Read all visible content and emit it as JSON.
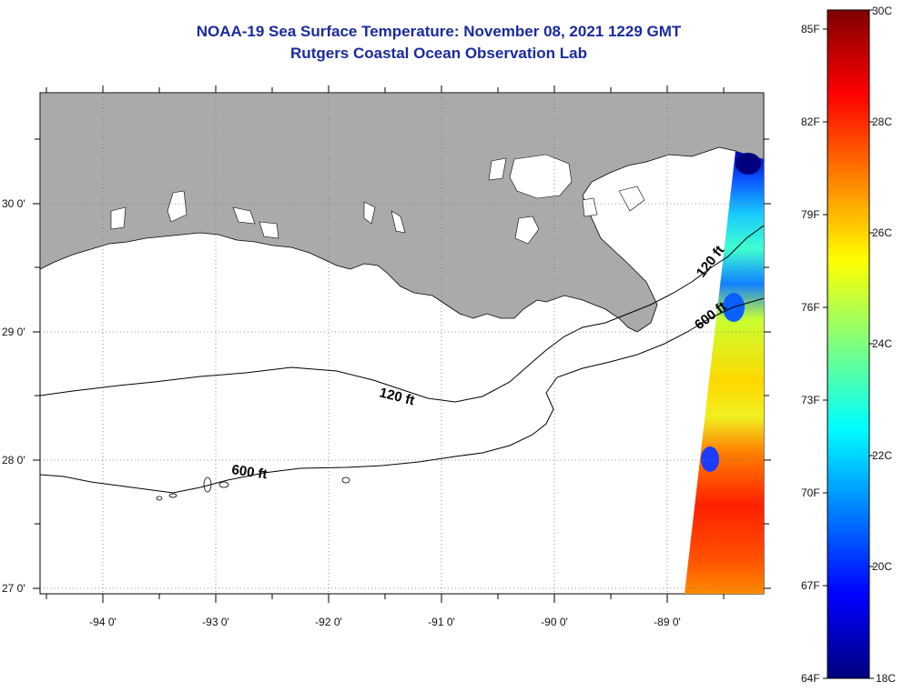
{
  "header": {
    "title": "NOAA-19 Sea Surface Temperature:  November 08, 2021 1229 GMT",
    "subtitle": "Rutgers Coastal Ocean Observation Lab"
  },
  "map": {
    "lon_ticks": [
      "-94 0'",
      "-93 0'",
      "-92 0'",
      "-91 0'",
      "-90 0'",
      "-89 0'"
    ],
    "lat_ticks": [
      "30 0'",
      "29 0'",
      "28 0'",
      "27 0'"
    ],
    "contours": [
      {
        "label": "120 ft",
        "instances": 2
      },
      {
        "label": "600 ft",
        "instances": 2
      }
    ],
    "colors": {
      "land": "#aaaaaa",
      "lakes": "#ffffff",
      "ocean": "#ffffff",
      "grid": "#777777"
    }
  },
  "colorbar": {
    "fahrenheit_ticks": [
      "85F",
      "82F",
      "79F",
      "76F",
      "73F",
      "70F",
      "67F",
      "64F"
    ],
    "celsius_ticks": [
      "30C",
      "28C",
      "26C",
      "24C",
      "22C",
      "20C",
      "18C"
    ],
    "colormap": [
      "#00007f",
      "#0000ff",
      "#007fff",
      "#00ffff",
      "#7fff7f",
      "#ffff00",
      "#ff7f00",
      "#ff0000",
      "#7f0000"
    ],
    "range_c": [
      18,
      30
    ]
  }
}
